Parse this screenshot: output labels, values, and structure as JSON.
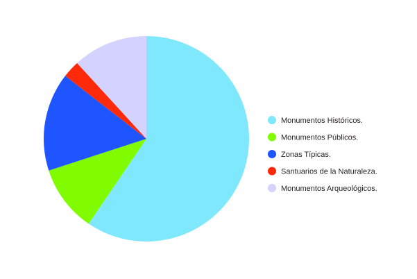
{
  "chart_data": {
    "type": "pie",
    "start_angle_deg": 0,
    "direction": "clockwise",
    "legend_position": "right",
    "slices": [
      {
        "label": "Monumentos Históricos.",
        "value": 59.5,
        "color": "#80e8fd"
      },
      {
        "label": "Monumentos Públicos.",
        "value": 10.5,
        "color": "#80fb00"
      },
      {
        "label": "Zonas Típicas.",
        "value": 15.5,
        "color": "#1e55fe"
      },
      {
        "label": "Santuarios de la Naturaleza.",
        "value": 2.7,
        "color": "#ff2a0a"
      },
      {
        "label": "Monumentos Arqueológicos.",
        "value": 11.8,
        "color": "#d4d2fe"
      }
    ]
  }
}
